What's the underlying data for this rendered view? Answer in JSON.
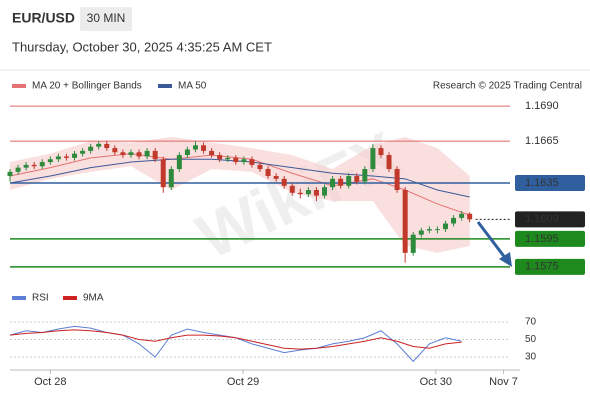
{
  "header": {
    "symbol": "EUR/USD",
    "timeframe": "30 MIN",
    "datetime": "Thursday, October 30, 2025 4:35:25 AM CET",
    "credit": "Research © 2025 Trading Central",
    "watermark": "WikiFX"
  },
  "chart_data": [
    {
      "type": "candlestick",
      "up_color": "#2e8b3e",
      "down_color": "#c0392b",
      "ylim": [
        1.1562,
        1.1698
      ],
      "xlim": [
        0,
        62
      ],
      "candles": [
        [
          1.164,
          1.1645,
          1.1636,
          1.1643
        ],
        [
          1.1643,
          1.1648,
          1.1641,
          1.1646
        ],
        [
          1.1646,
          1.165,
          1.1644,
          1.1648
        ],
        [
          1.1648,
          1.165,
          1.1645,
          1.1647
        ],
        [
          1.1647,
          1.1652,
          1.1645,
          1.165
        ],
        [
          1.165,
          1.1654,
          1.1648,
          1.1652
        ],
        [
          1.1652,
          1.1656,
          1.165,
          1.1654
        ],
        [
          1.1654,
          1.1656,
          1.1651,
          1.1653
        ],
        [
          1.1653,
          1.1658,
          1.1651,
          1.1656
        ],
        [
          1.1656,
          1.166,
          1.1654,
          1.1658
        ],
        [
          1.1658,
          1.1663,
          1.1656,
          1.1661
        ],
        [
          1.1661,
          1.1665,
          1.1659,
          1.1663
        ],
        [
          1.1663,
          1.1665,
          1.1658,
          1.166
        ],
        [
          1.166,
          1.1662,
          1.1655,
          1.1657
        ],
        [
          1.1657,
          1.1659,
          1.1653,
          1.1655
        ],
        [
          1.1655,
          1.1659,
          1.1653,
          1.1657
        ],
        [
          1.1657,
          1.1659,
          1.1652,
          1.1654
        ],
        [
          1.1654,
          1.166,
          1.1652,
          1.1658
        ],
        [
          1.1658,
          1.166,
          1.165,
          1.1652
        ],
        [
          1.1652,
          1.1654,
          1.1628,
          1.1632
        ],
        [
          1.1632,
          1.1647,
          1.163,
          1.1645
        ],
        [
          1.1645,
          1.1657,
          1.1643,
          1.1655
        ],
        [
          1.1655,
          1.1661,
          1.1653,
          1.1659
        ],
        [
          1.1659,
          1.1665,
          1.1657,
          1.1662
        ],
        [
          1.1662,
          1.1664,
          1.1656,
          1.1658
        ],
        [
          1.1658,
          1.166,
          1.1653,
          1.1655
        ],
        [
          1.1655,
          1.1657,
          1.165,
          1.1652
        ],
        [
          1.1652,
          1.1655,
          1.165,
          1.1653
        ],
        [
          1.1653,
          1.1655,
          1.1648,
          1.165
        ],
        [
          1.165,
          1.1654,
          1.1648,
          1.1652
        ],
        [
          1.1652,
          1.1654,
          1.1646,
          1.1648
        ],
        [
          1.1648,
          1.165,
          1.1643,
          1.1645
        ],
        [
          1.1645,
          1.1647,
          1.1638,
          1.164
        ],
        [
          1.164,
          1.1642,
          1.1636,
          1.1638
        ],
        [
          1.1638,
          1.164,
          1.1631,
          1.1633
        ],
        [
          1.1633,
          1.1635,
          1.1626,
          1.1628
        ],
        [
          1.1628,
          1.1631,
          1.1624,
          1.1627
        ],
        [
          1.1627,
          1.1632,
          1.1625,
          1.163
        ],
        [
          1.163,
          1.1632,
          1.1622,
          1.1626
        ],
        [
          1.1626,
          1.1634,
          1.1624,
          1.1632
        ],
        [
          1.1632,
          1.164,
          1.163,
          1.1638
        ],
        [
          1.1638,
          1.164,
          1.1631,
          1.1633
        ],
        [
          1.1633,
          1.1642,
          1.1631,
          1.164
        ],
        [
          1.164,
          1.1642,
          1.1634,
          1.1636
        ],
        [
          1.1636,
          1.1647,
          1.1634,
          1.1645
        ],
        [
          1.1645,
          1.1663,
          1.1643,
          1.166
        ],
        [
          1.166,
          1.1662,
          1.1653,
          1.1655
        ],
        [
          1.1655,
          1.1657,
          1.1643,
          1.1645
        ],
        [
          1.1645,
          1.1647,
          1.1628,
          1.163
        ],
        [
          1.163,
          1.1632,
          1.1578,
          1.1585
        ],
        [
          1.1585,
          1.16,
          1.1583,
          1.1598
        ],
        [
          1.1598,
          1.1603,
          1.1596,
          1.1601
        ],
        [
          1.1601,
          1.1604,
          1.1599,
          1.1602
        ],
        [
          1.1602,
          1.1604,
          1.1599,
          1.1602
        ],
        [
          1.1602,
          1.1608,
          1.16,
          1.1606
        ],
        [
          1.1606,
          1.1612,
          1.1604,
          1.161
        ],
        [
          1.161,
          1.1615,
          1.1608,
          1.1613
        ],
        [
          1.1613,
          1.1614,
          1.1607,
          1.1609
        ]
      ],
      "overlays": [
        {
          "name": "MA 20 + Bollinger Bands",
          "color": "#e57373",
          "band_color": "#f7c9c9",
          "x": [
            0,
            5,
            10,
            15,
            20,
            25,
            30,
            35,
            40,
            45,
            49,
            53,
            57
          ],
          "values": [
            1.164,
            1.1646,
            1.1653,
            1.1656,
            1.1652,
            1.1655,
            1.1652,
            1.1642,
            1.1633,
            1.1638,
            1.163,
            1.162,
            1.1612
          ],
          "upper": [
            1.165,
            1.1656,
            1.1665,
            1.1664,
            1.1668,
            1.1664,
            1.166,
            1.1655,
            1.1645,
            1.1662,
            1.1668,
            1.166,
            1.164
          ],
          "lower": [
            1.163,
            1.1638,
            1.1643,
            1.1647,
            1.163,
            1.1645,
            1.1643,
            1.1628,
            1.1622,
            1.1622,
            1.159,
            1.1585,
            1.159
          ]
        },
        {
          "name": "MA 50",
          "color": "#3b5998",
          "x": [
            0,
            5,
            10,
            15,
            20,
            25,
            30,
            35,
            40,
            45,
            49,
            53,
            57
          ],
          "values": [
            1.1635,
            1.164,
            1.1646,
            1.165,
            1.1652,
            1.1652,
            1.165,
            1.1646,
            1.1642,
            1.164,
            1.1638,
            1.163,
            1.1625
          ]
        }
      ],
      "levels": [
        {
          "value": 1.169,
          "label": "1.1690",
          "color": "#e06666",
          "boxed": false,
          "dashed": false
        },
        {
          "value": 1.1665,
          "label": "1.1665",
          "color": "#e06666",
          "boxed": false,
          "dashed": false
        },
        {
          "value": 1.1635,
          "label": "1.1635",
          "color": "#2f5f9e",
          "boxed": true,
          "dashed": false
        },
        {
          "value": 1.1609,
          "label": "1.1609",
          "color": "#222222",
          "boxed": true,
          "dashed": true
        },
        {
          "value": 1.1595,
          "label": "1.1595",
          "color": "#1e8a1e",
          "boxed": true,
          "dashed": false
        },
        {
          "value": 1.1575,
          "label": "1.1575",
          "color": "#1e8a1e",
          "boxed": true,
          "dashed": false
        }
      ]
    },
    {
      "type": "line",
      "ylim": [
        22,
        78
      ],
      "yticks": [
        30,
        50,
        70
      ],
      "xlim": [
        0,
        62
      ],
      "xticks": [
        {
          "value": 5,
          "label": "Oct 28"
        },
        {
          "value": 28.9,
          "label": "Oct 29"
        },
        {
          "value": 52.8,
          "label": "Oct 30"
        },
        {
          "value": 61.2,
          "label": "Nov 7"
        }
      ],
      "x": [
        0,
        2,
        4,
        6,
        8,
        10,
        12,
        14,
        16,
        18,
        20,
        22,
        24,
        26,
        28,
        30,
        32,
        34,
        36,
        38,
        40,
        42,
        44,
        46,
        48,
        50,
        52,
        54,
        56
      ],
      "series": [
        {
          "name": "RSI",
          "color": "#5b7fd6",
          "values": [
            55,
            60,
            58,
            62,
            65,
            63,
            58,
            55,
            45,
            30,
            55,
            62,
            58,
            55,
            52,
            45,
            40,
            35,
            38,
            40,
            45,
            48,
            52,
            60,
            45,
            25,
            45,
            52,
            48
          ]
        },
        {
          "name": "9MA",
          "color": "#cc2222",
          "values": [
            55,
            57,
            58,
            60,
            61,
            60,
            58,
            55,
            50,
            48,
            52,
            55,
            55,
            54,
            52,
            48,
            44,
            40,
            39,
            40,
            42,
            45,
            48,
            52,
            48,
            42,
            40,
            45,
            47
          ]
        }
      ]
    }
  ]
}
